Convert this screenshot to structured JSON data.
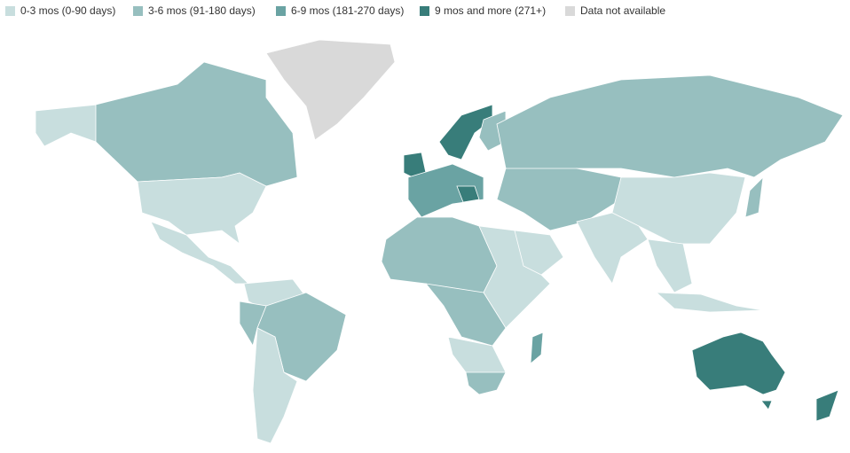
{
  "legend": [
    {
      "label": "0-3 mos (0-90 days)",
      "color": "#c8dede"
    },
    {
      "label": "3-6 mos (91-180 days)",
      "color": "#97bfbf"
    },
    {
      "label": "6-9 mos (181-270 days)",
      "color": "#6aa3a3"
    },
    {
      "label": "9 mos and more (271+)",
      "color": "#387d7a"
    },
    {
      "label": "Data not available",
      "color": "#d9d9d9"
    }
  ]
}
